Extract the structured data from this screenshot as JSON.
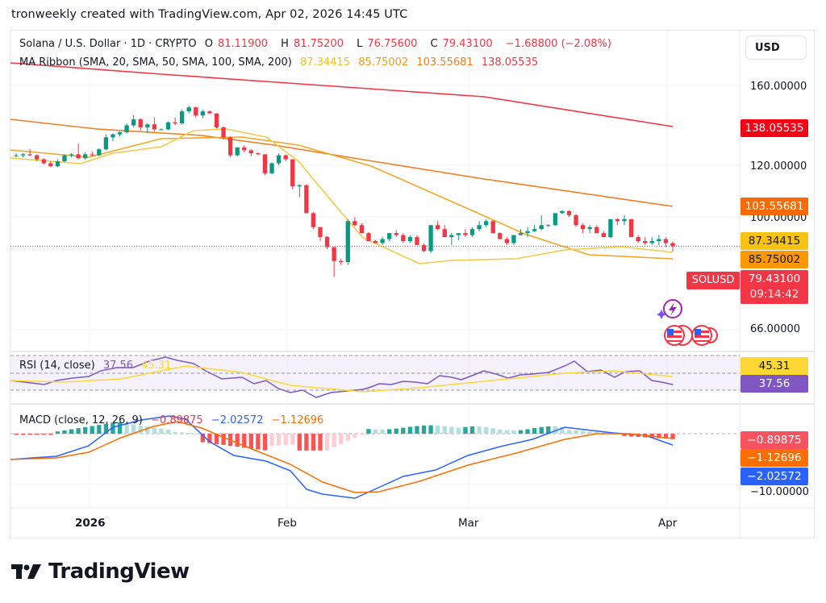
{
  "header": {
    "credit": "tronweekly created with TradingView.com, Apr 02, 2026 14:45 UTC"
  },
  "legend": {
    "symbol": "Solana / U.S. Dollar · 1D · CRYPTO",
    "open_label": "O",
    "open": "81.11900",
    "high_label": "H",
    "high": "81.75200",
    "low_label": "L",
    "low": "76.75600",
    "close_label": "C",
    "close": "79.43100",
    "change": "−1.68800 (−2.08%)",
    "ma_label": "MA Ribbon (SMA, 20, SMA, 50, SMA, 100, SMA, 200)",
    "ma20": "87.34415",
    "ma50": "85.75002",
    "ma100": "103.55681",
    "ma200": "138.05535"
  },
  "rsi": {
    "label": "RSI (14, close)",
    "value": "37.56",
    "ma": "45.31"
  },
  "macd": {
    "label": "MACD (close, 12, 26, 9)",
    "hist": "−0.89875",
    "macd": "−2.02572",
    "signal": "−1.12696"
  },
  "price_axis": {
    "currency_button": "USD",
    "ticks": [
      "160.00000",
      "120.00000",
      "100.00000",
      "66.00000"
    ],
    "macd_tick": "−10.00000"
  },
  "tags": {
    "ma200": "138.05535",
    "ma100": "103.55681",
    "ma20": "87.34415",
    "ma50": "85.75002",
    "symbol": "SOLUSD",
    "last_price": "79.43100",
    "countdown": "09:14:42",
    "rsi_ma": "45.31",
    "rsi": "37.56",
    "macd_hist": "−0.89875",
    "macd_signal": "−1.12696",
    "macd_line": "−2.02572"
  },
  "time_axis": {
    "labels": [
      "2026",
      "Feb",
      "Mar",
      "Apr"
    ]
  },
  "footer": {
    "logo_text": "TradingView"
  },
  "colors": {
    "up": "#089981",
    "down": "#f23645",
    "ma20": "#f7c948",
    "ma50": "#f5a623",
    "ma100": "#f57c1f",
    "ma200": "#f23645",
    "rsi": "#7e57c2",
    "rsi_ma": "#fdd835",
    "macd": "#2962ff",
    "signal": "#ff6d00"
  },
  "chart_data": [
    {
      "type": "candlestick",
      "title": "Solana / U.S. Dollar · 1D · CRYPTO",
      "xlabel": "",
      "ylabel": "USD",
      "categories_ticks": [
        "2026",
        "Feb",
        "Mar",
        "Apr"
      ],
      "ylim": [
        55,
        175
      ],
      "last": {
        "open": 81.119,
        "high": 81.752,
        "low": 76.756,
        "close": 79.431,
        "change": -1.688,
        "change_pct": -2.08
      },
      "candles_approx": [
        [
          125,
          126,
          124,
          125
        ],
        [
          125,
          126,
          124,
          125.5
        ],
        [
          125.5,
          128,
          124.5,
          125
        ],
        [
          125,
          125.5,
          122,
          123
        ],
        [
          123,
          123.5,
          120.5,
          121
        ],
        [
          121,
          122,
          119,
          119.5
        ],
        [
          119.5,
          123,
          119,
          122
        ],
        [
          122,
          125.5,
          121.5,
          125
        ],
        [
          125,
          126,
          124,
          125.5
        ],
        [
          125.5,
          131,
          123,
          123.5
        ],
        [
          123.5,
          126.5,
          123,
          125.5
        ],
        [
          125.5,
          127,
          124.5,
          125
        ],
        [
          125,
          128.5,
          124.5,
          128
        ],
        [
          128,
          135.5,
          127.5,
          134
        ],
        [
          134,
          136,
          132,
          135.5
        ],
        [
          135.5,
          137,
          134.5,
          136.5
        ],
        [
          136.5,
          141,
          136,
          140
        ],
        [
          140,
          145,
          139,
          143
        ],
        [
          143,
          143.5,
          137.5,
          139
        ],
        [
          139,
          141,
          136,
          140.5
        ],
        [
          140.5,
          144,
          137,
          138
        ],
        [
          138,
          138.5,
          137.5,
          138
        ],
        [
          138,
          142,
          137.5,
          141.5
        ],
        [
          141.5,
          144,
          140,
          141
        ],
        [
          141,
          148,
          140.5,
          147
        ],
        [
          147,
          150,
          146,
          149
        ],
        [
          149,
          149.5,
          144,
          145
        ],
        [
          145,
          148,
          143.5,
          147
        ],
        [
          147,
          147.5,
          146,
          146
        ],
        [
          146,
          146,
          138.5,
          139
        ],
        [
          139,
          139.5,
          133,
          134
        ],
        [
          134,
          134.5,
          124,
          125
        ],
        [
          125,
          129,
          124.5,
          129
        ],
        [
          129,
          130,
          126.5,
          127.5
        ],
        [
          127.5,
          128,
          124.5,
          126
        ],
        [
          126,
          126.5,
          125,
          125.5
        ],
        [
          125.5,
          125.5,
          115,
          116
        ],
        [
          116,
          121.5,
          115.5,
          121
        ],
        [
          121,
          126,
          120,
          125
        ],
        [
          125,
          125.5,
          122,
          123
        ],
        [
          123,
          123,
          108,
          109.5
        ],
        [
          109.5,
          110.5,
          104,
          110
        ],
        [
          110,
          110.5,
          97,
          96
        ],
        [
          96,
          96.5,
          88,
          89
        ],
        [
          89,
          89,
          82,
          84
        ],
        [
          84,
          84.5,
          78,
          79
        ],
        [
          79,
          79,
          64,
          72
        ],
        [
          72,
          73,
          70,
          71.5
        ],
        [
          71.5,
          93,
          70,
          92
        ],
        [
          92,
          94,
          89.5,
          90
        ],
        [
          90,
          91,
          86.5,
          86
        ],
        [
          86,
          86.5,
          83,
          82
        ],
        [
          82,
          82.5,
          81,
          81
        ],
        [
          81,
          84,
          80,
          83
        ],
        [
          83,
          86,
          82,
          86
        ],
        [
          86,
          87.5,
          84,
          85
        ],
        [
          85,
          86,
          81,
          82
        ],
        [
          82,
          85,
          81,
          84
        ],
        [
          84,
          85,
          80,
          80
        ],
        [
          80,
          81,
          76.5,
          77
        ],
        [
          77,
          90,
          76,
          90
        ],
        [
          90,
          92,
          87.5,
          88
        ],
        [
          88,
          90,
          85,
          84
        ],
        [
          84,
          86,
          80,
          85
        ],
        [
          85,
          85.5,
          82.5,
          86
        ],
        [
          86,
          88,
          84,
          85
        ],
        [
          85,
          89,
          84,
          88
        ],
        [
          88,
          92,
          87,
          90
        ],
        [
          90,
          93,
          89,
          92
        ],
        [
          92,
          92.5,
          86,
          86
        ],
        [
          86,
          86.5,
          83,
          83
        ],
        [
          83,
          84,
          80,
          81
        ],
        [
          81,
          85,
          80,
          85
        ],
        [
          85,
          88,
          85,
          86
        ],
        [
          86,
          89,
          84,
          87
        ],
        [
          87,
          90,
          86.5,
          88
        ],
        [
          88,
          95,
          87.5,
          90
        ],
        [
          90,
          90.5,
          89,
          90
        ],
        [
          90,
          96,
          89.5,
          96
        ],
        [
          96,
          97.5,
          95.5,
          97
        ],
        [
          97,
          97.5,
          94,
          95
        ],
        [
          95,
          95.5,
          89,
          90
        ],
        [
          90,
          91,
          86,
          88
        ],
        [
          88,
          90,
          86,
          89
        ],
        [
          89,
          90,
          86,
          86
        ],
        [
          86,
          87,
          84,
          84
        ],
        [
          84,
          93,
          83.5,
          93
        ],
        [
          93,
          93.5,
          90,
          92
        ],
        [
          92,
          95,
          90,
          93
        ],
        [
          93,
          93,
          84,
          84
        ],
        [
          84,
          85,
          81,
          82
        ],
        [
          82,
          84,
          80,
          81
        ],
        [
          81,
          84,
          80,
          82
        ],
        [
          82,
          85,
          80,
          83
        ],
        [
          83,
          84,
          79,
          81
        ],
        [
          81,
          81.75,
          76.76,
          79.43
        ]
      ],
      "overlays": [
        {
          "name": "SMA 20",
          "last": 87.34415
        },
        {
          "name": "SMA 50",
          "last": 85.75002
        },
        {
          "name": "SMA 100",
          "last": 103.55681
        },
        {
          "name": "SMA 200",
          "last": 138.05535
        }
      ],
      "annotations": [
        "SOLUSD 79.43100",
        "09:14:42"
      ]
    },
    {
      "type": "line",
      "title": "RSI (14, close)",
      "ylim": [
        20,
        80
      ],
      "series": [
        {
          "name": "RSI",
          "last": 37.56
        },
        {
          "name": "RSI-based MA",
          "last": 45.31
        }
      ],
      "bands": [
        30,
        50,
        70
      ]
    },
    {
      "type": "bar",
      "title": "MACD (close, 12, 26, 9)",
      "series": [
        {
          "name": "Histogram",
          "last": -0.89875
        },
        {
          "name": "MACD",
          "last": -2.02572
        },
        {
          "name": "Signal",
          "last": -1.12696
        }
      ],
      "yticks": [
        -10
      ]
    }
  ]
}
